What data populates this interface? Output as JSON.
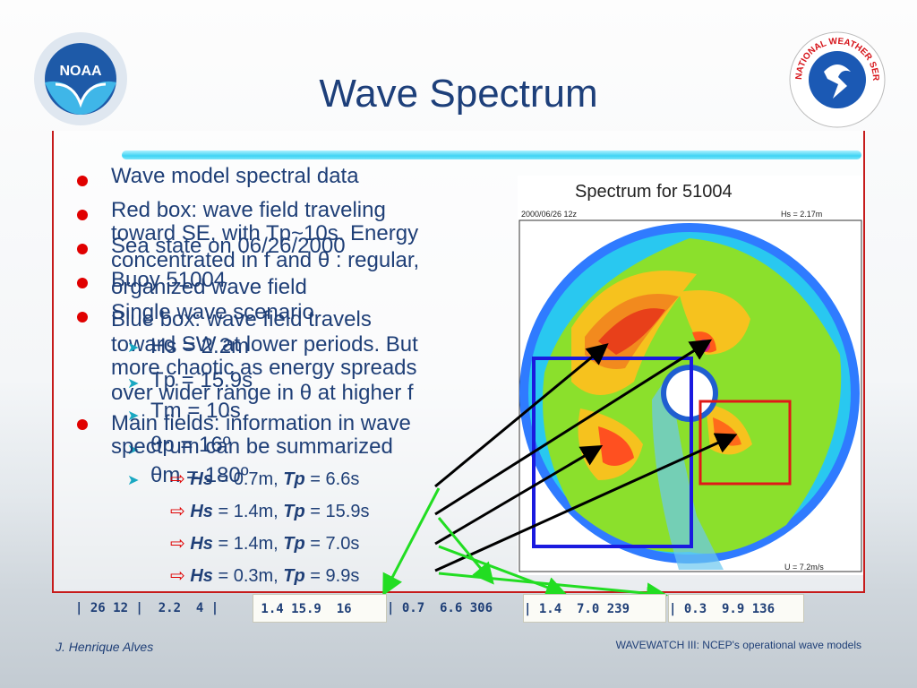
{
  "slide": {
    "title": "Wave Spectrum",
    "bullets": [
      "Wave model spectral data",
      "Red box: wave field traveling",
      "toward SE, with Tp~10s. Energy",
      "Sea state on 06/26/2000",
      "concentrated in f and θ :  regular,",
      "Buoy 51004",
      "organized wave field",
      "Single wave scenario",
      "Blue box: wave field travels",
      "toward SW at lower periods. But",
      "Hs = 2.2m",
      "more chaotic as energy spreads",
      "Tp = 15.9s",
      "over wider range in θ at higher f",
      "Tm = 10s",
      "Main fields: information in wave",
      "θp = 16º",
      "spectrum can be summarized",
      "θm = 180º"
    ],
    "hs_rows": [
      {
        "hs_label": "Hs",
        "hs_value": "= 0.7m,",
        "tp_label": "Tp",
        "tp_value": "=  6.6s"
      },
      {
        "hs_label": "Hs",
        "hs_value": "= 1.4m,",
        "tp_label": "Tp",
        "tp_value": "= 15.9s"
      },
      {
        "hs_label": "Hs",
        "hs_value": "= 1.4m,",
        "tp_label": "Tp",
        "tp_value": "=  7.0s"
      },
      {
        "hs_label": "Hs",
        "hs_value": "= 0.3m,",
        "tp_label": "Tp",
        "tp_value": "=  9.9s"
      }
    ],
    "data_strip": [
      "| 26 12 |  2.2  4 |",
      " 1.4 15.9  16 ",
      "| 0.7  6.6 306 ",
      "| 1.4  7.0 239 ",
      "| 0.3  9.9 136 "
    ],
    "spectrum": {
      "title": "Spectrum  for  51004",
      "date": "2000/06/26  12z",
      "hs": "Hs  =   2.17m",
      "u": "U  =   7.2m/s"
    },
    "footer_left": "J. Henrique Alves",
    "footer_right": "WAVEWATCH III: NCEP's operational wave models",
    "logos": {
      "left": "NOAA",
      "right": "NATIONAL WEATHER SERVICE"
    }
  },
  "colors": {
    "title": "#1d3f7a",
    "text": "#1f3f77",
    "bullet": "#e00000",
    "frame": "#c61b1b",
    "arrow_green": "#22dd22",
    "blue_box": "#1a1adf",
    "red_box": "#e01818"
  }
}
